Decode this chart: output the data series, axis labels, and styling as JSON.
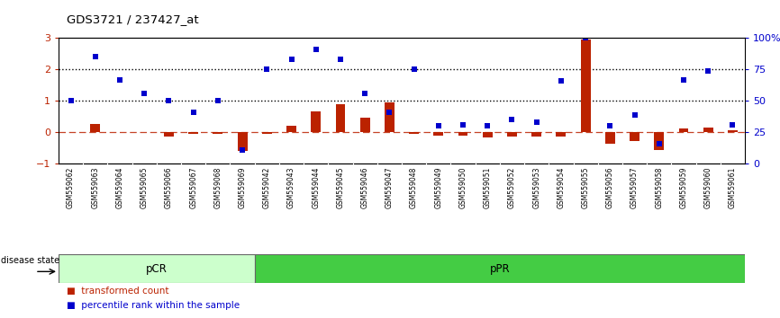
{
  "title": "GDS3721 / 237427_at",
  "categories": [
    "GSM559062",
    "GSM559063",
    "GSM559064",
    "GSM559065",
    "GSM559066",
    "GSM559067",
    "GSM559068",
    "GSM559069",
    "GSM559042",
    "GSM559043",
    "GSM559044",
    "GSM559045",
    "GSM559046",
    "GSM559047",
    "GSM559048",
    "GSM559049",
    "GSM559050",
    "GSM559051",
    "GSM559052",
    "GSM559053",
    "GSM559054",
    "GSM559055",
    "GSM559056",
    "GSM559057",
    "GSM559058",
    "GSM559059",
    "GSM559060",
    "GSM559061"
  ],
  "red_bars": [
    0.02,
    0.28,
    0.0,
    0.0,
    -0.12,
    -0.05,
    -0.05,
    -0.58,
    -0.05,
    0.22,
    0.68,
    0.9,
    0.48,
    0.95,
    -0.05,
    -0.1,
    -0.1,
    -0.15,
    -0.12,
    -0.12,
    -0.12,
    2.95,
    -0.35,
    -0.28,
    -0.55,
    0.12,
    0.15,
    0.08
  ],
  "blue_dots_pct": [
    50,
    85,
    67,
    56,
    50,
    41,
    50,
    11,
    75,
    83,
    91,
    83,
    56,
    41,
    75,
    30,
    31,
    30,
    35,
    33,
    66,
    100,
    30,
    39,
    16,
    67,
    74,
    31
  ],
  "pcr_count": 8,
  "ppr_count": 20,
  "ylim": [
    -1,
    3
  ],
  "yticks_left": [
    -1,
    0,
    1,
    2,
    3
  ],
  "yticks_right_vals": [
    0,
    25,
    50,
    75,
    100
  ],
  "bar_color": "#bb2200",
  "dot_color": "#0000cc",
  "pcr_color": "#ccffcc",
  "ppr_color": "#44cc44",
  "tick_bg_color": "#cccccc",
  "legend_bar": "transformed count",
  "legend_dot": "percentile rank within the sample",
  "disease_state_label": "disease state",
  "pcr_label": "pCR",
  "ppr_label": "pPR"
}
